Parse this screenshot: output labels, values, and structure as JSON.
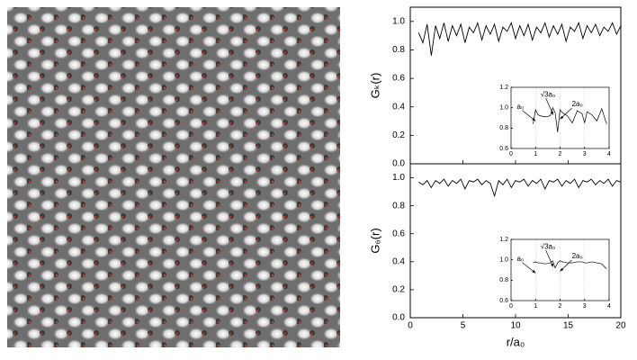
{
  "chart_data": [
    {
      "type": "line",
      "ylabel": "Gₖ(r)",
      "xlim": [
        0,
        20
      ],
      "ylim": [
        0,
        1.1
      ],
      "xticks": [
        0,
        5,
        10,
        15,
        20
      ],
      "xtick_labels": false,
      "yticks": [
        {
          "value": 0,
          "label": "0.0"
        },
        0.2,
        0.4,
        0.6,
        0.8,
        {
          "value": 1,
          "label": "1.0"
        }
      ],
      "color": "#000000",
      "x": [
        0.8,
        1.2,
        1.6,
        2.0,
        2.4,
        2.8,
        3.2,
        3.6,
        4.0,
        4.4,
        4.8,
        5.2,
        5.6,
        6.0,
        6.4,
        6.8,
        7.2,
        7.6,
        8.0,
        8.4,
        8.8,
        9.2,
        9.6,
        10.0,
        10.4,
        10.8,
        11.2,
        11.6,
        12.0,
        12.4,
        12.8,
        13.2,
        13.6,
        14.0,
        14.4,
        14.8,
        15.2,
        15.6,
        16.0,
        16.4,
        16.8,
        17.2,
        17.6,
        18.0,
        18.4,
        18.8,
        19.2,
        19.6,
        20.0
      ],
      "values": [
        0.92,
        0.85,
        0.98,
        0.76,
        0.97,
        0.88,
        0.99,
        0.86,
        0.97,
        0.9,
        0.98,
        0.85,
        0.96,
        0.92,
        0.99,
        0.87,
        0.97,
        0.91,
        0.98,
        0.86,
        0.96,
        0.93,
        0.99,
        0.88,
        0.97,
        0.9,
        0.98,
        0.87,
        0.96,
        0.92,
        0.99,
        0.89,
        0.97,
        0.91,
        0.98,
        0.86,
        0.96,
        0.93,
        0.99,
        0.88,
        0.97,
        0.92,
        0.98,
        0.9,
        0.96,
        0.93,
        0.99,
        0.91,
        0.97
      ]
    },
    {
      "type": "line",
      "xlim": [
        0,
        4
      ],
      "ylim": [
        0.6,
        1.2
      ],
      "xticks": [
        0,
        1,
        2,
        3,
        4
      ],
      "yticks": [
        0.6,
        0.8,
        {
          "value": 1,
          "label": "1.0"
        },
        1.2
      ],
      "grid_x": true,
      "color": "#000000",
      "annotations": [
        "a₀",
        "√3a₀",
        "2a₀"
      ],
      "x": [
        0.9,
        1.0,
        1.1,
        1.2,
        1.4,
        1.6,
        1.7,
        1.8,
        1.9,
        2.0,
        2.1,
        2.3,
        2.5,
        2.7,
        2.9,
        3.0,
        3.1,
        3.3,
        3.5,
        3.7,
        3.9
      ],
      "values": [
        0.84,
        0.98,
        0.93,
        0.92,
        0.91,
        0.92,
        1.0,
        0.95,
        0.76,
        0.98,
        0.95,
        0.92,
        0.85,
        0.97,
        0.94,
        0.85,
        0.96,
        0.93,
        0.87,
        0.99,
        0.84
      ]
    },
    {
      "type": "line",
      "ylabel": "G₆(r)",
      "xlabel": "r/a₀",
      "xlim": [
        0,
        20
      ],
      "ylim": [
        0,
        1.1
      ],
      "xticks": [
        0,
        5,
        10,
        15,
        20
      ],
      "xtick_labels": true,
      "yticks": [
        {
          "value": 0,
          "label": "0.0"
        },
        0.2,
        0.4,
        0.6,
        0.8,
        {
          "value": 1,
          "label": "1.0"
        }
      ],
      "color": "#000000",
      "x": [
        0.8,
        1.2,
        1.6,
        2.0,
        2.4,
        2.8,
        3.2,
        3.6,
        4.0,
        4.4,
        4.8,
        5.2,
        5.6,
        6.0,
        6.4,
        6.8,
        7.2,
        7.6,
        8.0,
        8.4,
        8.8,
        9.2,
        9.6,
        10.0,
        10.4,
        10.8,
        11.2,
        11.6,
        12.0,
        12.4,
        12.8,
        13.2,
        13.6,
        14.0,
        14.4,
        14.8,
        15.2,
        15.6,
        16.0,
        16.4,
        16.8,
        17.2,
        17.6,
        18.0,
        18.4,
        18.8,
        19.2,
        19.6,
        20.0
      ],
      "values": [
        0.97,
        0.95,
        0.98,
        0.93,
        0.98,
        0.96,
        0.99,
        0.94,
        0.98,
        0.96,
        0.99,
        0.92,
        0.98,
        0.97,
        0.99,
        0.95,
        0.98,
        0.96,
        0.87,
        0.98,
        0.95,
        0.99,
        0.93,
        0.98,
        0.97,
        0.99,
        0.94,
        0.98,
        0.96,
        0.99,
        0.92,
        0.98,
        0.97,
        0.99,
        0.94,
        0.98,
        0.96,
        0.99,
        0.93,
        0.98,
        0.97,
        0.99,
        0.95,
        0.98,
        0.96,
        0.99,
        0.94,
        0.98,
        0.97
      ]
    },
    {
      "type": "line",
      "xlim": [
        0,
        4
      ],
      "ylim": [
        0.6,
        1.2
      ],
      "xticks": [
        0,
        1,
        2,
        3,
        4
      ],
      "yticks": [
        0.6,
        0.8,
        {
          "value": 1,
          "label": "1.0"
        },
        1.2
      ],
      "grid_x": true,
      "color": "#000000",
      "annotations": [
        "a₀",
        "√3a₀",
        "2a₀"
      ],
      "x": [
        0.9,
        1.0,
        1.1,
        1.2,
        1.4,
        1.6,
        1.7,
        1.8,
        1.9,
        2.0,
        2.1,
        2.3,
        2.5,
        2.7,
        2.9,
        3.0,
        3.1,
        3.3,
        3.5,
        3.7,
        3.9
      ],
      "values": [
        0.97,
        0.98,
        0.97,
        0.97,
        0.96,
        0.97,
        0.99,
        0.92,
        0.97,
        0.99,
        0.98,
        0.97,
        0.97,
        0.98,
        0.98,
        0.97,
        0.97,
        0.98,
        0.97,
        0.96,
        0.91
      ]
    }
  ]
}
